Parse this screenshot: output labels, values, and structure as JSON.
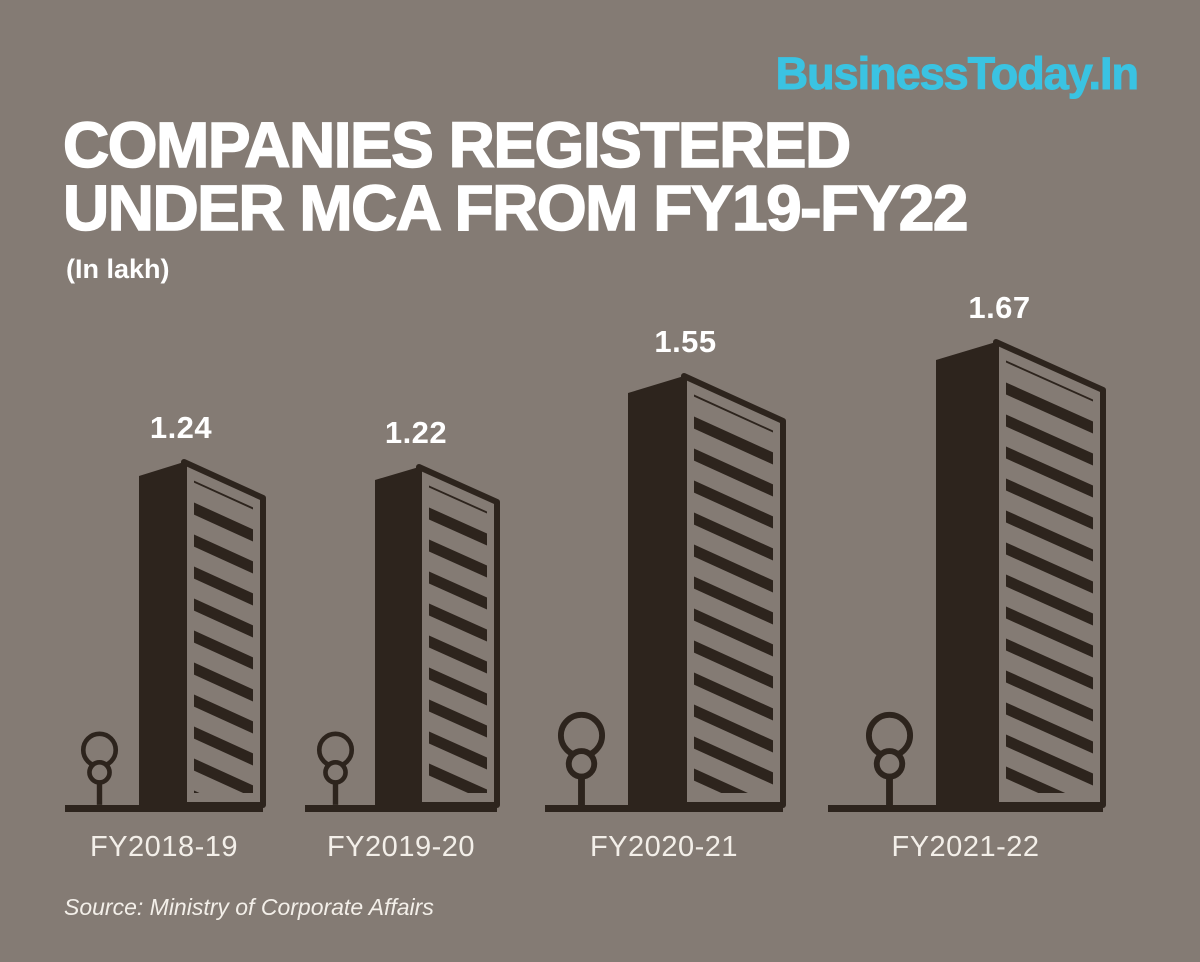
{
  "brand": {
    "logo_text": "BusinessToday.In"
  },
  "header": {
    "title_line1": "COMPANIES REGISTERED",
    "title_line2": "UNDER MCA FROM FY19-FY22",
    "unit_note": "(In lakh)"
  },
  "footer": {
    "source": "Source: Ministry of Corporate Affairs"
  },
  "colors": {
    "background": "#847b74",
    "building": "#2d241d",
    "accent": "#3ac3e2",
    "text_primary": "#ffffff",
    "text_soft": "#f3efe9"
  },
  "chart_data": {
    "type": "bar",
    "title": "Companies registered under MCA from FY19-FY22",
    "unit": "lakh",
    "categories": [
      "FY2018-19",
      "FY2019-20",
      "FY2020-21",
      "FY2021-22"
    ],
    "values": [
      1.24,
      1.22,
      1.55,
      1.67
    ],
    "value_labels": [
      "1.24",
      "1.22",
      "1.55",
      "1.67"
    ],
    "xlabel": "",
    "ylabel": "Companies registered (lakh)",
    "ylim": [
      0,
      1.8
    ],
    "grid": false,
    "legend": false,
    "bar_style": "isometric building illustration with tree at base",
    "source": "Ministry of Corporate Affairs"
  }
}
